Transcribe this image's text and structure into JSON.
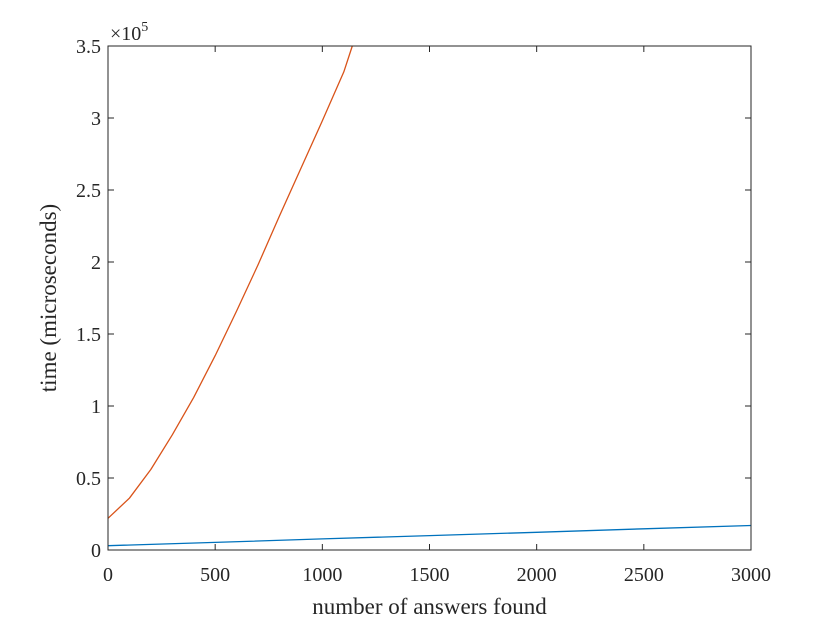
{
  "chart_data": {
    "type": "line",
    "title": "",
    "xlabel": "number of answers found",
    "ylabel": "time (microseconds)",
    "xlim": [
      0,
      3000
    ],
    "ylim": [
      0,
      350000
    ],
    "x_ticks": [
      0,
      500,
      1000,
      1500,
      2000,
      2500,
      3000
    ],
    "x_tick_labels": [
      "0",
      "500",
      "1000",
      "1500",
      "2000",
      "2500",
      "3000"
    ],
    "y_ticks": [
      0,
      50000,
      100000,
      150000,
      200000,
      250000,
      300000,
      350000
    ],
    "y_tick_labels": [
      "0",
      "0.5",
      "1",
      "1.5",
      "2",
      "2.5",
      "3",
      "3.5"
    ],
    "y_exponent_base": "×10",
    "y_exponent_power": "5",
    "grid": false,
    "box": true,
    "series": [
      {
        "color": "#0072BD",
        "x": [
          0,
          500,
          1000,
          1500,
          2000,
          2500,
          3000
        ],
        "y": [
          3000,
          5300,
          7700,
          10000,
          12300,
          14700,
          17000
        ]
      },
      {
        "color": "#D95319",
        "x": [
          0,
          100,
          200,
          300,
          400,
          500,
          600,
          700,
          800,
          900,
          1000,
          1100,
          1140
        ],
        "y": [
          22000,
          36000,
          56000,
          80000,
          106000,
          135000,
          166000,
          198000,
          232000,
          265000,
          298000,
          332000,
          350000
        ]
      }
    ]
  }
}
